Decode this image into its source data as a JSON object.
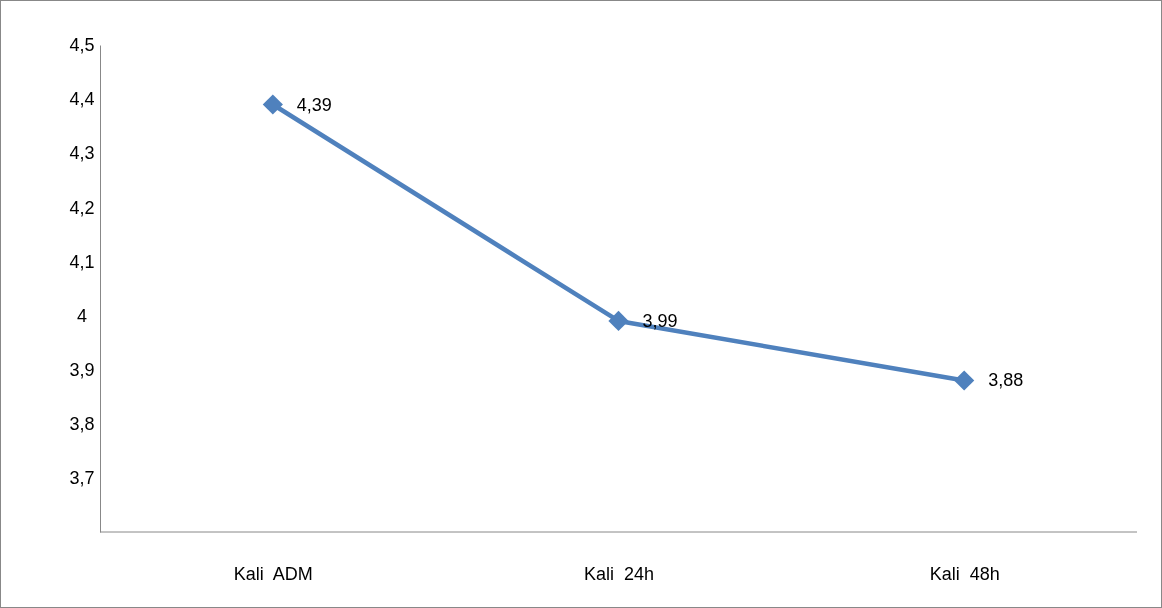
{
  "chart_data": {
    "type": "line",
    "categories": [
      "Kali  ADM",
      "Kali  24h",
      "Kali  48h"
    ],
    "series": [
      {
        "color": "#4f81bd",
        "values": [
          4.39,
          3.99,
          3.88
        ],
        "value_labels": [
          "4,39",
          "3,99",
          "3,88"
        ]
      }
    ],
    "ylim": [
      3.6,
      4.5
    ],
    "yticks": [
      {
        "value": 3.7,
        "label": "3,7"
      },
      {
        "value": 3.8,
        "label": "3,8"
      },
      {
        "value": 3.9,
        "label": "3,9"
      },
      {
        "value": 4,
        "label": "4"
      },
      {
        "value": 4.1,
        "label": "4,1"
      },
      {
        "value": 4.2,
        "label": "4,2"
      },
      {
        "value": 4.3,
        "label": "4,3"
      },
      {
        "value": 4.4,
        "label": "4,4"
      },
      {
        "value": 4.5,
        "label": "4,5"
      }
    ],
    "grid": false,
    "marker": "diamond",
    "line_style": "solid"
  }
}
